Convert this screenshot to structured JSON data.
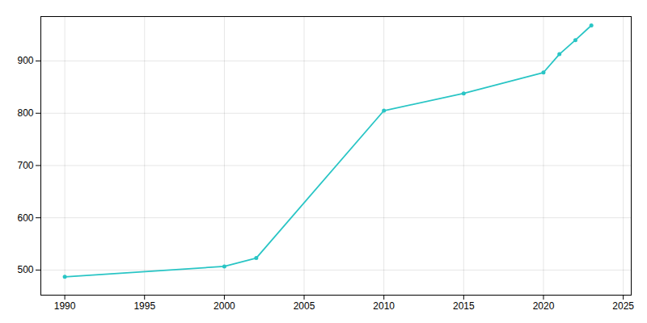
{
  "chart_data": {
    "type": "line",
    "x": [
      1990,
      2000,
      2002,
      2010,
      2015,
      2020,
      2021,
      2022,
      2023
    ],
    "values": [
      487,
      507,
      523,
      805,
      838,
      878,
      913,
      940,
      968
    ],
    "color": "#29c5c5",
    "marker": "circle",
    "xlim": [
      1988.5,
      2025.5
    ],
    "ylim": [
      452,
      985
    ],
    "xticks": [
      1990,
      1995,
      2000,
      2005,
      2010,
      2015,
      2020,
      2025
    ],
    "yticks": [
      500,
      600,
      700,
      800,
      900
    ],
    "grid": true
  }
}
